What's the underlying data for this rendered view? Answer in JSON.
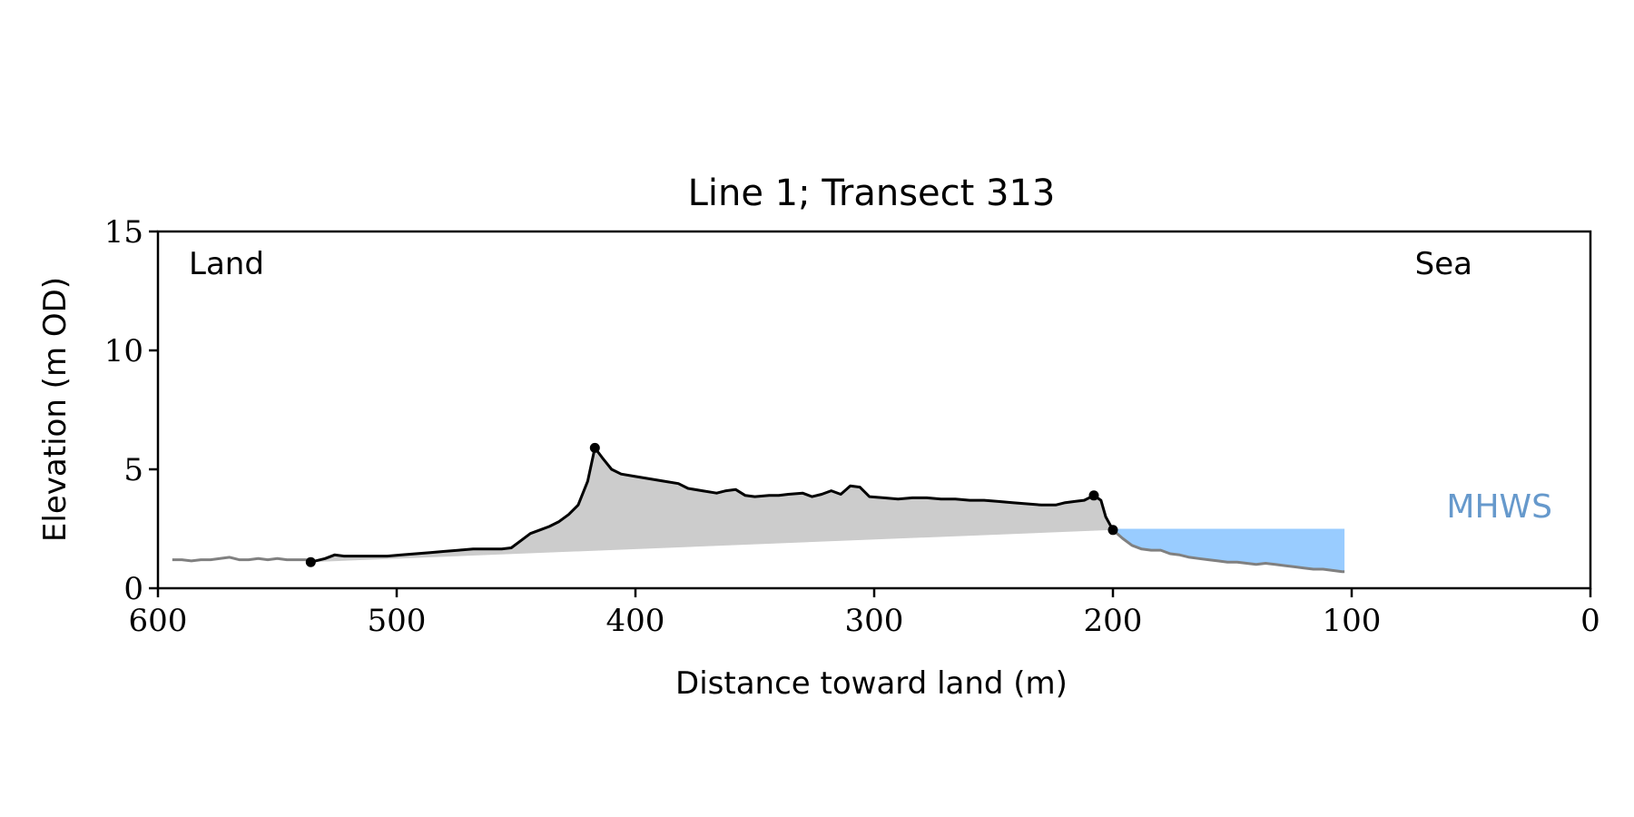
{
  "chart_data": {
    "type": "area",
    "title": "Line 1; Transect 313",
    "xlabel": "Distance toward land (m)",
    "ylabel": "Elevation (m OD)",
    "xlim": [
      600,
      0
    ],
    "ylim": [
      0,
      15
    ],
    "x_ticks": [
      600,
      500,
      400,
      300,
      200,
      100,
      0
    ],
    "y_ticks": [
      0,
      5,
      10,
      15
    ],
    "x_tick_labels": [
      "600",
      "500",
      "400",
      "300",
      "200",
      "100",
      "0"
    ],
    "y_tick_labels": [
      "0",
      "5",
      "10",
      "15"
    ],
    "grid": false,
    "annotations": {
      "land": "Land",
      "sea": "Sea",
      "mhws": "MHWS"
    },
    "colors": {
      "profile": "#000000",
      "extension": "#808080",
      "fill": "#cccccc",
      "water": "#99ccff",
      "mhws_text": "#6699cc"
    },
    "mhws_level": 2.5,
    "water_extent": [
      200,
      103
    ],
    "profile_extension_left": [
      [
        594,
        1.2
      ],
      [
        590,
        1.2
      ],
      [
        586,
        1.15
      ],
      [
        582,
        1.2
      ],
      [
        578,
        1.2
      ],
      [
        574,
        1.25
      ],
      [
        570,
        1.3
      ],
      [
        566,
        1.2
      ],
      [
        562,
        1.2
      ],
      [
        558,
        1.25
      ],
      [
        554,
        1.2
      ],
      [
        550,
        1.25
      ],
      [
        546,
        1.2
      ],
      [
        542,
        1.2
      ],
      [
        538,
        1.2
      ],
      [
        536,
        1.1
      ]
    ],
    "profile_main": [
      [
        536,
        1.1
      ],
      [
        530,
        1.25
      ],
      [
        526,
        1.4
      ],
      [
        522,
        1.35
      ],
      [
        516,
        1.35
      ],
      [
        510,
        1.35
      ],
      [
        504,
        1.35
      ],
      [
        498,
        1.4
      ],
      [
        492,
        1.45
      ],
      [
        486,
        1.5
      ],
      [
        480,
        1.55
      ],
      [
        474,
        1.6
      ],
      [
        468,
        1.65
      ],
      [
        462,
        1.65
      ],
      [
        456,
        1.65
      ],
      [
        452,
        1.7
      ],
      [
        448,
        2.0
      ],
      [
        444,
        2.3
      ],
      [
        440,
        2.45
      ],
      [
        436,
        2.6
      ],
      [
        432,
        2.8
      ],
      [
        428,
        3.1
      ],
      [
        424,
        3.5
      ],
      [
        420,
        4.5
      ],
      [
        417,
        5.9
      ],
      [
        414,
        5.5
      ],
      [
        410,
        5.0
      ],
      [
        406,
        4.8
      ],
      [
        400,
        4.7
      ],
      [
        394,
        4.6
      ],
      [
        388,
        4.5
      ],
      [
        382,
        4.4
      ],
      [
        378,
        4.2
      ],
      [
        372,
        4.1
      ],
      [
        366,
        4.0
      ],
      [
        362,
        4.1
      ],
      [
        358,
        4.15
      ],
      [
        354,
        3.9
      ],
      [
        350,
        3.85
      ],
      [
        344,
        3.9
      ],
      [
        340,
        3.9
      ],
      [
        336,
        3.95
      ],
      [
        330,
        4.0
      ],
      [
        326,
        3.85
      ],
      [
        322,
        3.95
      ],
      [
        318,
        4.1
      ],
      [
        314,
        3.95
      ],
      [
        310,
        4.3
      ],
      [
        306,
        4.25
      ],
      [
        302,
        3.85
      ],
      [
        296,
        3.8
      ],
      [
        290,
        3.75
      ],
      [
        284,
        3.8
      ],
      [
        278,
        3.8
      ],
      [
        272,
        3.75
      ],
      [
        266,
        3.75
      ],
      [
        260,
        3.7
      ],
      [
        254,
        3.7
      ],
      [
        248,
        3.65
      ],
      [
        242,
        3.6
      ],
      [
        236,
        3.55
      ],
      [
        230,
        3.5
      ],
      [
        224,
        3.5
      ],
      [
        220,
        3.6
      ],
      [
        216,
        3.65
      ],
      [
        212,
        3.7
      ],
      [
        208,
        3.9
      ],
      [
        205,
        3.7
      ],
      [
        203,
        3.0
      ],
      [
        200,
        2.45
      ]
    ],
    "profile_extension_right": [
      [
        200,
        2.45
      ],
      [
        196,
        2.1
      ],
      [
        192,
        1.8
      ],
      [
        188,
        1.65
      ],
      [
        184,
        1.6
      ],
      [
        180,
        1.6
      ],
      [
        176,
        1.45
      ],
      [
        172,
        1.4
      ],
      [
        168,
        1.3
      ],
      [
        164,
        1.25
      ],
      [
        160,
        1.2
      ],
      [
        156,
        1.15
      ],
      [
        152,
        1.1
      ],
      [
        148,
        1.1
      ],
      [
        144,
        1.05
      ],
      [
        140,
        1.0
      ],
      [
        136,
        1.05
      ],
      [
        132,
        1.0
      ],
      [
        128,
        0.95
      ],
      [
        124,
        0.9
      ],
      [
        120,
        0.85
      ],
      [
        116,
        0.8
      ],
      [
        112,
        0.8
      ],
      [
        108,
        0.75
      ],
      [
        104,
        0.7
      ],
      [
        103,
        0.7
      ]
    ],
    "key_points": [
      [
        536,
        1.1
      ],
      [
        417,
        5.9
      ],
      [
        208,
        3.9
      ],
      [
        200,
        2.45
      ]
    ]
  }
}
